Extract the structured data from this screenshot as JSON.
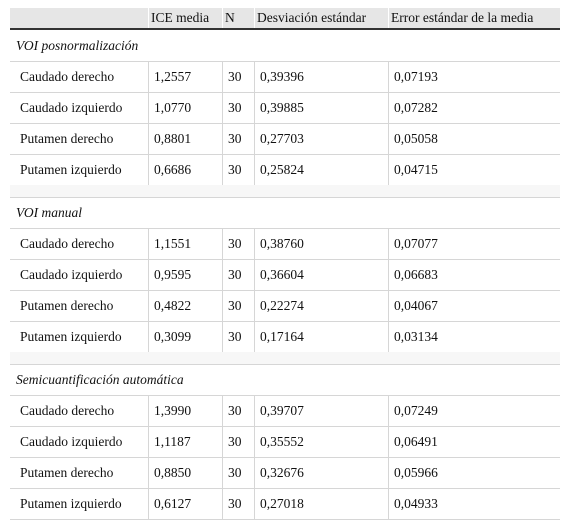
{
  "table": {
    "header": [
      "",
      "ICE media",
      "N",
      "Desviación estándar",
      "Error estándar de la media"
    ],
    "sections": [
      {
        "title": "VOI posnormalización",
        "rows": [
          [
            "Caudado derecho",
            "1,2557",
            "30",
            "0,39396",
            "0,07193"
          ],
          [
            "Caudado izquierdo",
            "1,0770",
            "30",
            "0,39885",
            "0,07282"
          ],
          [
            "Putamen derecho",
            "0,8801",
            "30",
            "0,27703",
            "0,05058"
          ],
          [
            "Putamen izquierdo",
            "0,6686",
            "30",
            "0,25824",
            "0,04715"
          ]
        ]
      },
      {
        "title": "VOI manual",
        "rows": [
          [
            "Caudado derecho",
            "1,1551",
            "30",
            "0,38760",
            "0,07077"
          ],
          [
            "Caudado izquierdo",
            "0,9595",
            "30",
            "0,36604",
            "0,06683"
          ],
          [
            "Putamen derecho",
            "0,4822",
            "30",
            "0,22274",
            "0,04067"
          ],
          [
            "Putamen izquierdo",
            "0,3099",
            "30",
            "0,17164",
            "0,03134"
          ]
        ]
      },
      {
        "title": "Semicuantificación automática",
        "rows": [
          [
            "Caudado derecho",
            "1,3990",
            "30",
            "0,39707",
            "0,07249"
          ],
          [
            "Caudado izquierdo",
            "1,1187",
            "30",
            "0,35552",
            "0,06491"
          ],
          [
            "Putamen derecho",
            "0,8850",
            "30",
            "0,32676",
            "0,05966"
          ],
          [
            "Putamen izquierdo",
            "0,6127",
            "30",
            "0,27018",
            "0,04933"
          ]
        ]
      }
    ]
  }
}
